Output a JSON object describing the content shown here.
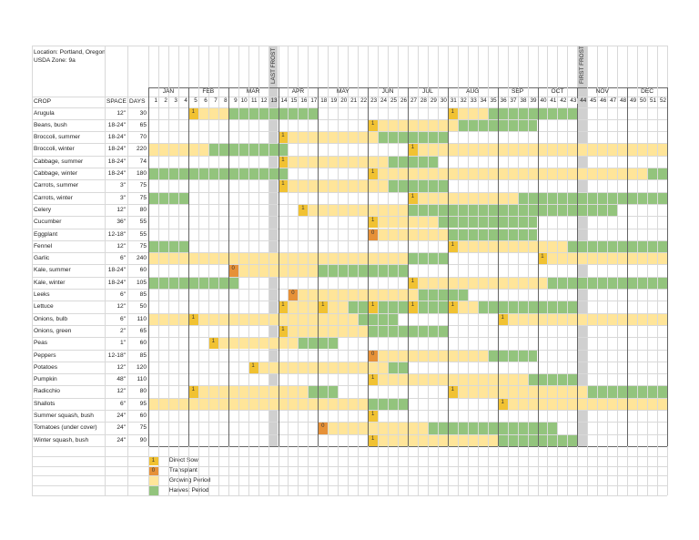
{
  "location": {
    "line1": "Location: Portland, Oregon",
    "line2": "USDA Zone: 9a"
  },
  "frost": {
    "last_label": "LAST FROST",
    "last_week": 13,
    "first_label": "FIRST FROST",
    "first_week": 44
  },
  "headers": {
    "crop": "CROP",
    "space": "SPACE",
    "days": "DAYS"
  },
  "months": [
    {
      "label": "JAN",
      "from": 1,
      "to": 4
    },
    {
      "label": "FEB",
      "from": 5,
      "to": 8
    },
    {
      "label": "MAR",
      "from": 9,
      "to": 13
    },
    {
      "label": "APR",
      "from": 14,
      "to": 17
    },
    {
      "label": "MAY",
      "from": 18,
      "to": 22
    },
    {
      "label": "JUN",
      "from": 23,
      "to": 26
    },
    {
      "label": "JUL",
      "from": 27,
      "to": 30
    },
    {
      "label": "AUG",
      "from": 31,
      "to": 35
    },
    {
      "label": "SEP",
      "from": 36,
      "to": 39
    },
    {
      "label": "OCT",
      "from": 40,
      "to": 43
    },
    {
      "label": "NOV",
      "from": 44,
      "to": 48
    },
    {
      "label": "DEC",
      "from": 49,
      "to": 52
    }
  ],
  "colors": {
    "sow": "#f1c232",
    "transplant": "#e69138",
    "grow": "#ffe599",
    "harvest": "#93c47d",
    "frost": "#d0d0d0"
  },
  "legend": [
    {
      "type": "sow",
      "mark": "1",
      "label": "Direct Sow"
    },
    {
      "type": "transplant",
      "mark": "0",
      "label": "Transplant"
    },
    {
      "type": "grow",
      "mark": "",
      "label": "Growing Period"
    },
    {
      "type": "harvest",
      "mark": "",
      "label": "Harvest Period"
    }
  ],
  "crops": [
    {
      "name": "Arugula",
      "space": "12\"",
      "days": "30",
      "segments": [
        [
          5,
          8,
          "grow"
        ],
        [
          9,
          17,
          "harvest"
        ],
        [
          31,
          34,
          "grow"
        ],
        [
          35,
          43,
          "harvest"
        ]
      ],
      "marks": [
        [
          5,
          "sow"
        ],
        [
          31,
          "sow"
        ]
      ]
    },
    {
      "name": "Beans, bush",
      "space": "18-24\"",
      "days": "65",
      "segments": [
        [
          23,
          31,
          "grow"
        ],
        [
          32,
          39,
          "harvest"
        ]
      ],
      "marks": [
        [
          23,
          "sow"
        ]
      ]
    },
    {
      "name": "Broccoli, summer",
      "space": "18-24\"",
      "days": "70",
      "segments": [
        [
          14,
          23,
          "grow"
        ],
        [
          24,
          30,
          "harvest"
        ]
      ],
      "marks": [
        [
          14,
          "sow"
        ]
      ]
    },
    {
      "name": "Broccoli, winter",
      "space": "18-24\"",
      "days": "220",
      "segments": [
        [
          1,
          6,
          "grow"
        ],
        [
          7,
          14,
          "harvest"
        ],
        [
          27,
          52,
          "grow"
        ]
      ],
      "marks": [
        [
          27,
          "sow"
        ]
      ]
    },
    {
      "name": "Cabbage, summer",
      "space": "18-24\"",
      "days": "74",
      "segments": [
        [
          14,
          24,
          "grow"
        ],
        [
          25,
          29,
          "harvest"
        ]
      ],
      "marks": [
        [
          14,
          "sow"
        ]
      ]
    },
    {
      "name": "Cabbage, winter",
      "space": "18-24\"",
      "days": "180",
      "segments": [
        [
          1,
          14,
          "harvest"
        ],
        [
          23,
          50,
          "grow"
        ],
        [
          51,
          52,
          "harvest"
        ]
      ],
      "marks": [
        [
          23,
          "sow"
        ]
      ]
    },
    {
      "name": "Carrots, summer",
      "space": "3\"",
      "days": "75",
      "segments": [
        [
          14,
          24,
          "grow"
        ],
        [
          25,
          30,
          "harvest"
        ]
      ],
      "marks": [
        [
          14,
          "sow"
        ]
      ]
    },
    {
      "name": "Carrots, winter",
      "space": "3\"",
      "days": "75",
      "segments": [
        [
          1,
          4,
          "harvest"
        ],
        [
          27,
          37,
          "grow"
        ],
        [
          38,
          52,
          "harvest"
        ]
      ],
      "marks": [
        [
          27,
          "sow"
        ]
      ]
    },
    {
      "name": "Celery",
      "space": "12\"",
      "days": "80",
      "segments": [
        [
          16,
          26,
          "grow"
        ],
        [
          27,
          47,
          "harvest"
        ]
      ],
      "marks": [
        [
          16,
          "sow"
        ]
      ]
    },
    {
      "name": "Cucumber",
      "space": "36\"",
      "days": "55",
      "segments": [
        [
          23,
          29,
          "grow"
        ],
        [
          30,
          39,
          "harvest"
        ]
      ],
      "marks": [
        [
          23,
          "sow"
        ]
      ]
    },
    {
      "name": "Eggplant",
      "space": "12-18\"",
      "days": "55",
      "segments": [
        [
          23,
          30,
          "grow"
        ],
        [
          31,
          39,
          "harvest"
        ]
      ],
      "marks": [
        [
          23,
          "transplant"
        ]
      ]
    },
    {
      "name": "Fennel",
      "space": "12\"",
      "days": "75",
      "segments": [
        [
          1,
          4,
          "harvest"
        ],
        [
          31,
          42,
          "grow"
        ],
        [
          43,
          52,
          "harvest"
        ]
      ],
      "marks": [
        [
          31,
          "sow"
        ]
      ]
    },
    {
      "name": "Garlic",
      "space": "6\"",
      "days": "240",
      "segments": [
        [
          1,
          26,
          "grow"
        ],
        [
          27,
          30,
          "harvest"
        ],
        [
          40,
          52,
          "grow"
        ]
      ],
      "marks": [
        [
          40,
          "sow"
        ]
      ]
    },
    {
      "name": "Kale, summer",
      "space": "18-24\"",
      "days": "60",
      "segments": [
        [
          9,
          17,
          "grow"
        ],
        [
          18,
          26,
          "harvest"
        ]
      ],
      "marks": [
        [
          9,
          "transplant"
        ]
      ]
    },
    {
      "name": "Kale, winter",
      "space": "18-24\"",
      "days": "105",
      "segments": [
        [
          1,
          9,
          "harvest"
        ],
        [
          27,
          40,
          "grow"
        ],
        [
          41,
          52,
          "harvest"
        ]
      ],
      "marks": [
        [
          27,
          "sow"
        ]
      ]
    },
    {
      "name": "Leeks",
      "space": "6\"",
      "days": "85",
      "segments": [
        [
          15,
          27,
          "grow"
        ],
        [
          28,
          32,
          "harvest"
        ]
      ],
      "marks": [
        [
          15,
          "transplant"
        ]
      ]
    },
    {
      "name": "Lettuce",
      "space": "12\"",
      "days": "50",
      "segments": [
        [
          14,
          20,
          "grow"
        ],
        [
          21,
          22,
          "harvest"
        ],
        [
          23,
          23,
          "grow"
        ],
        [
          24,
          26,
          "harvest"
        ],
        [
          27,
          27,
          "grow"
        ],
        [
          28,
          30,
          "harvest"
        ],
        [
          31,
          33,
          "grow"
        ],
        [
          34,
          43,
          "harvest"
        ]
      ],
      "marks": [
        [
          14,
          "sow"
        ],
        [
          18,
          "sow"
        ],
        [
          23,
          "sow"
        ],
        [
          27,
          "sow"
        ],
        [
          31,
          "sow"
        ]
      ]
    },
    {
      "name": "Onions, bulb",
      "space": "6\"",
      "days": "110",
      "segments": [
        [
          1,
          21,
          "grow"
        ],
        [
          22,
          25,
          "harvest"
        ],
        [
          36,
          52,
          "grow"
        ]
      ],
      "marks": [
        [
          5,
          "sow"
        ],
        [
          36,
          "sow"
        ]
      ]
    },
    {
      "name": "Onions, green",
      "space": "2\"",
      "days": "65",
      "segments": [
        [
          14,
          22,
          "grow"
        ],
        [
          23,
          30,
          "harvest"
        ]
      ],
      "marks": [
        [
          14,
          "sow"
        ]
      ]
    },
    {
      "name": "Peas",
      "space": "1\"",
      "days": "60",
      "segments": [
        [
          7,
          15,
          "grow"
        ],
        [
          16,
          19,
          "harvest"
        ]
      ],
      "marks": [
        [
          7,
          "sow"
        ]
      ]
    },
    {
      "name": "Peppers",
      "space": "12-18\"",
      "days": "85",
      "segments": [
        [
          23,
          34,
          "grow"
        ],
        [
          35,
          39,
          "harvest"
        ]
      ],
      "marks": [
        [
          23,
          "transplant"
        ]
      ]
    },
    {
      "name": "Potatoes",
      "space": "12\"",
      "days": "120",
      "segments": [
        [
          11,
          24,
          "grow"
        ],
        [
          25,
          26,
          "harvest"
        ]
      ],
      "marks": [
        [
          11,
          "sow"
        ]
      ]
    },
    {
      "name": "Pumpkin",
      "space": "48\"",
      "days": "110",
      "segments": [
        [
          23,
          38,
          "grow"
        ],
        [
          39,
          43,
          "harvest"
        ]
      ],
      "marks": [
        [
          23,
          "sow"
        ]
      ]
    },
    {
      "name": "Radicchio",
      "space": "12\"",
      "days": "80",
      "segments": [
        [
          5,
          16,
          "grow"
        ],
        [
          17,
          19,
          "harvest"
        ],
        [
          31,
          44,
          "grow"
        ],
        [
          45,
          52,
          "harvest"
        ]
      ],
      "marks": [
        [
          5,
          "sow"
        ],
        [
          31,
          "sow"
        ]
      ]
    },
    {
      "name": "Shallots",
      "space": "6\"",
      "days": "95",
      "segments": [
        [
          1,
          22,
          "grow"
        ],
        [
          23,
          26,
          "harvest"
        ],
        [
          36,
          52,
          "grow"
        ]
      ],
      "marks": [
        [
          36,
          "sow"
        ]
      ]
    },
    {
      "name": "Summer squash, bush",
      "space": "24\"",
      "days": "60",
      "segments": [],
      "marks": [
        [
          23,
          "sow"
        ]
      ]
    },
    {
      "name": "Tomatoes (under cover)",
      "space": "24\"",
      "days": "75",
      "segments": [
        [
          18,
          28,
          "grow"
        ],
        [
          29,
          41,
          "harvest"
        ]
      ],
      "marks": [
        [
          18,
          "transplant"
        ]
      ]
    },
    {
      "name": "Winter squash, bush",
      "space": "24\"",
      "days": "90",
      "segments": [
        [
          23,
          35,
          "grow"
        ],
        [
          36,
          43,
          "harvest"
        ]
      ],
      "marks": [
        [
          23,
          "sow"
        ]
      ]
    }
  ]
}
